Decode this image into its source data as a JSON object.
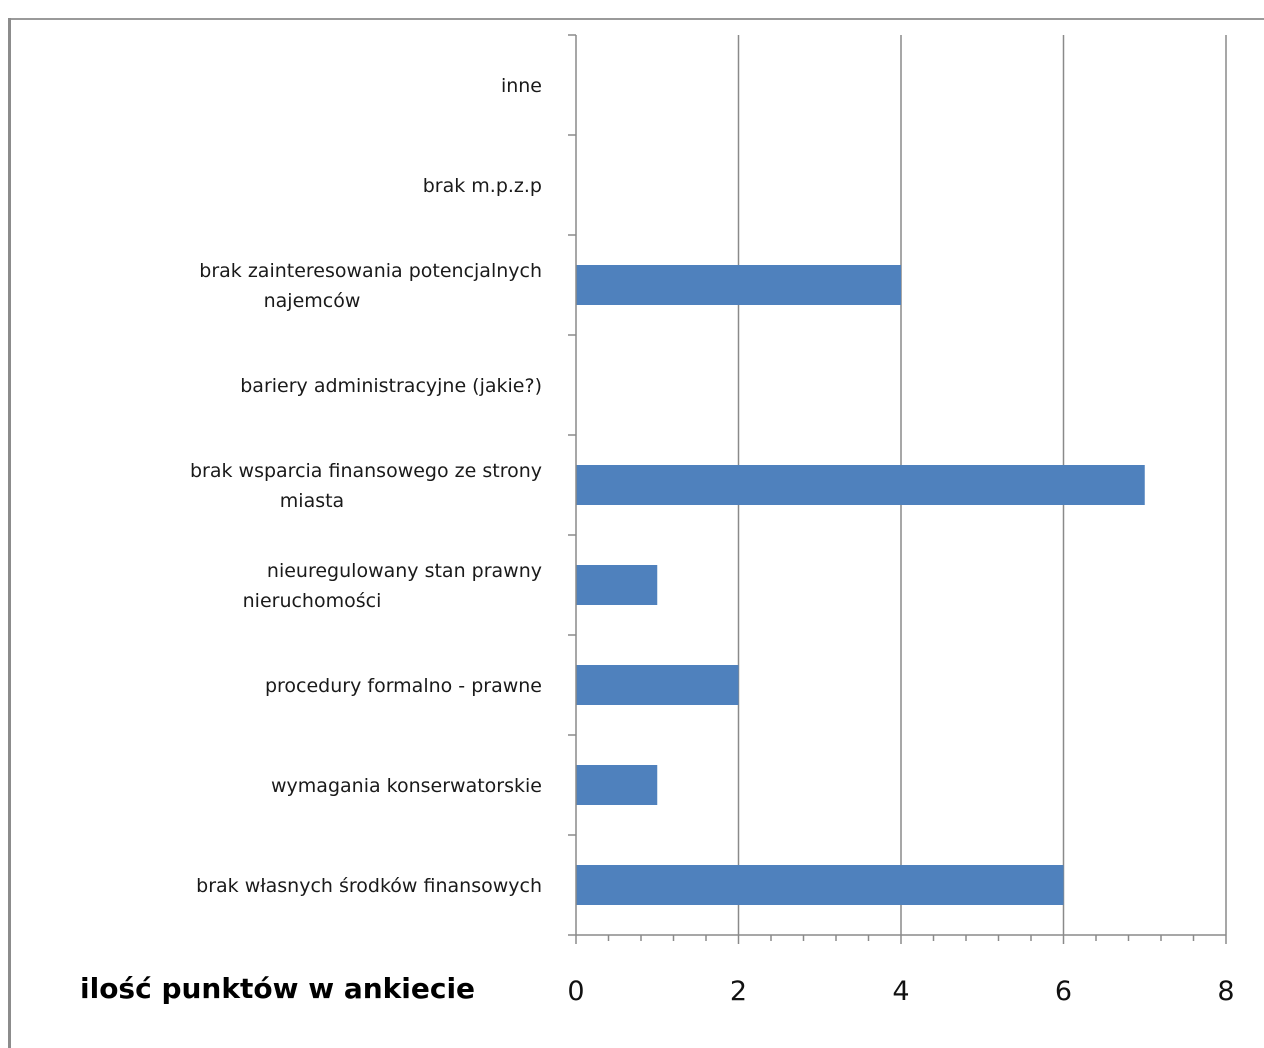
{
  "chart_data": {
    "type": "bar",
    "orientation": "horizontal",
    "title": "",
    "xlabel": "ilość punktów w ankiecie",
    "ylabel": "",
    "xlim": [
      0,
      8
    ],
    "xticks": [
      0,
      2,
      4,
      6,
      8
    ],
    "minor_step": 0.4,
    "grid": true,
    "legend": "none",
    "bar_color": "#4f81bd",
    "categories": [
      [
        "brak własnych środków finansowych"
      ],
      [
        "wymagania konserwatorskie"
      ],
      [
        "procedury formalno - prawne"
      ],
      [
        "nieuregulowany stan prawny",
        "nieruchomości"
      ],
      [
        "brak wsparcia finansowego ze strony",
        "miasta"
      ],
      [
        "bariery administracyjne (jakie?)"
      ],
      [
        "brak zainteresowania potencjalnych",
        "najemców"
      ],
      [
        "brak m.p.z.p"
      ],
      [
        "inne"
      ]
    ],
    "values": [
      6,
      1,
      2,
      1,
      7,
      0,
      4,
      0,
      0
    ]
  }
}
